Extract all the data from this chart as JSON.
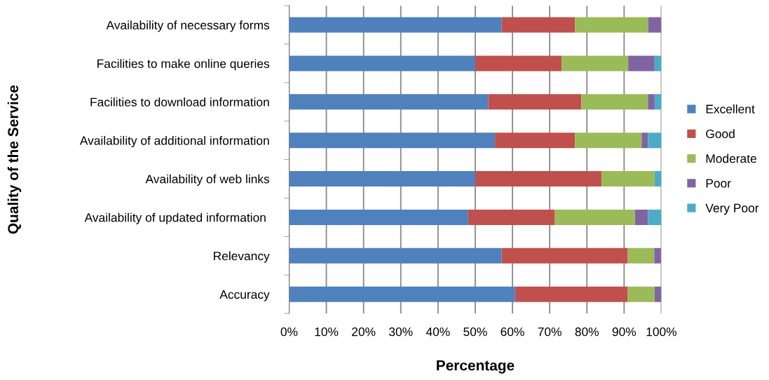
{
  "chart_data": {
    "type": "bar",
    "orientation": "horizontal",
    "stacked": true,
    "xlabel": "Percentage",
    "ylabel": "Quality of the Service",
    "categories": [
      "Availability of necessary forms",
      "Facilities to make online queries",
      "Facilities to download information",
      "Availability of additional information",
      "Availability of web links",
      "Availability of updated information ",
      "Relevancy",
      "Accuracy"
    ],
    "series": [
      {
        "name": "Excellent",
        "color": "#4f81bd",
        "values": [
          57.1,
          50.0,
          53.5,
          55.3,
          50.0,
          48.1,
          57.1,
          60.7
        ]
      },
      {
        "name": "Good",
        "color": "#c0504d",
        "values": [
          19.7,
          23.2,
          25.0,
          21.5,
          33.9,
          23.2,
          33.9,
          30.3
        ]
      },
      {
        "name": "Moderate",
        "color": "#9bbb59",
        "values": [
          19.7,
          17.9,
          17.9,
          17.9,
          14.3,
          21.6,
          7.1,
          7.2
        ]
      },
      {
        "name": "Poor",
        "color": "#8064a2",
        "values": [
          3.5,
          7.1,
          1.8,
          1.7,
          0,
          3.5,
          1.8,
          1.8
        ]
      },
      {
        "name": "Very Poor",
        "color": "#4bacc6",
        "values": [
          0,
          1.8,
          1.8,
          3.6,
          1.8,
          3.6,
          0,
          0
        ]
      }
    ],
    "xlim": [
      0,
      100
    ],
    "xticks": [
      {
        "value": 0,
        "label": "0%"
      },
      {
        "value": 10,
        "label": "10%"
      },
      {
        "value": 20,
        "label": "20%"
      },
      {
        "value": 30,
        "label": "30%"
      },
      {
        "value": 40,
        "label": "40%"
      },
      {
        "value": 50,
        "label": "50%"
      },
      {
        "value": 60,
        "label": "60%"
      },
      {
        "value": 70,
        "label": "70%"
      },
      {
        "value": 80,
        "label": "80%"
      },
      {
        "value": 90,
        "label": "90%"
      },
      {
        "value": 100,
        "label": "100%"
      }
    ],
    "grid": "x",
    "legend": "right"
  }
}
